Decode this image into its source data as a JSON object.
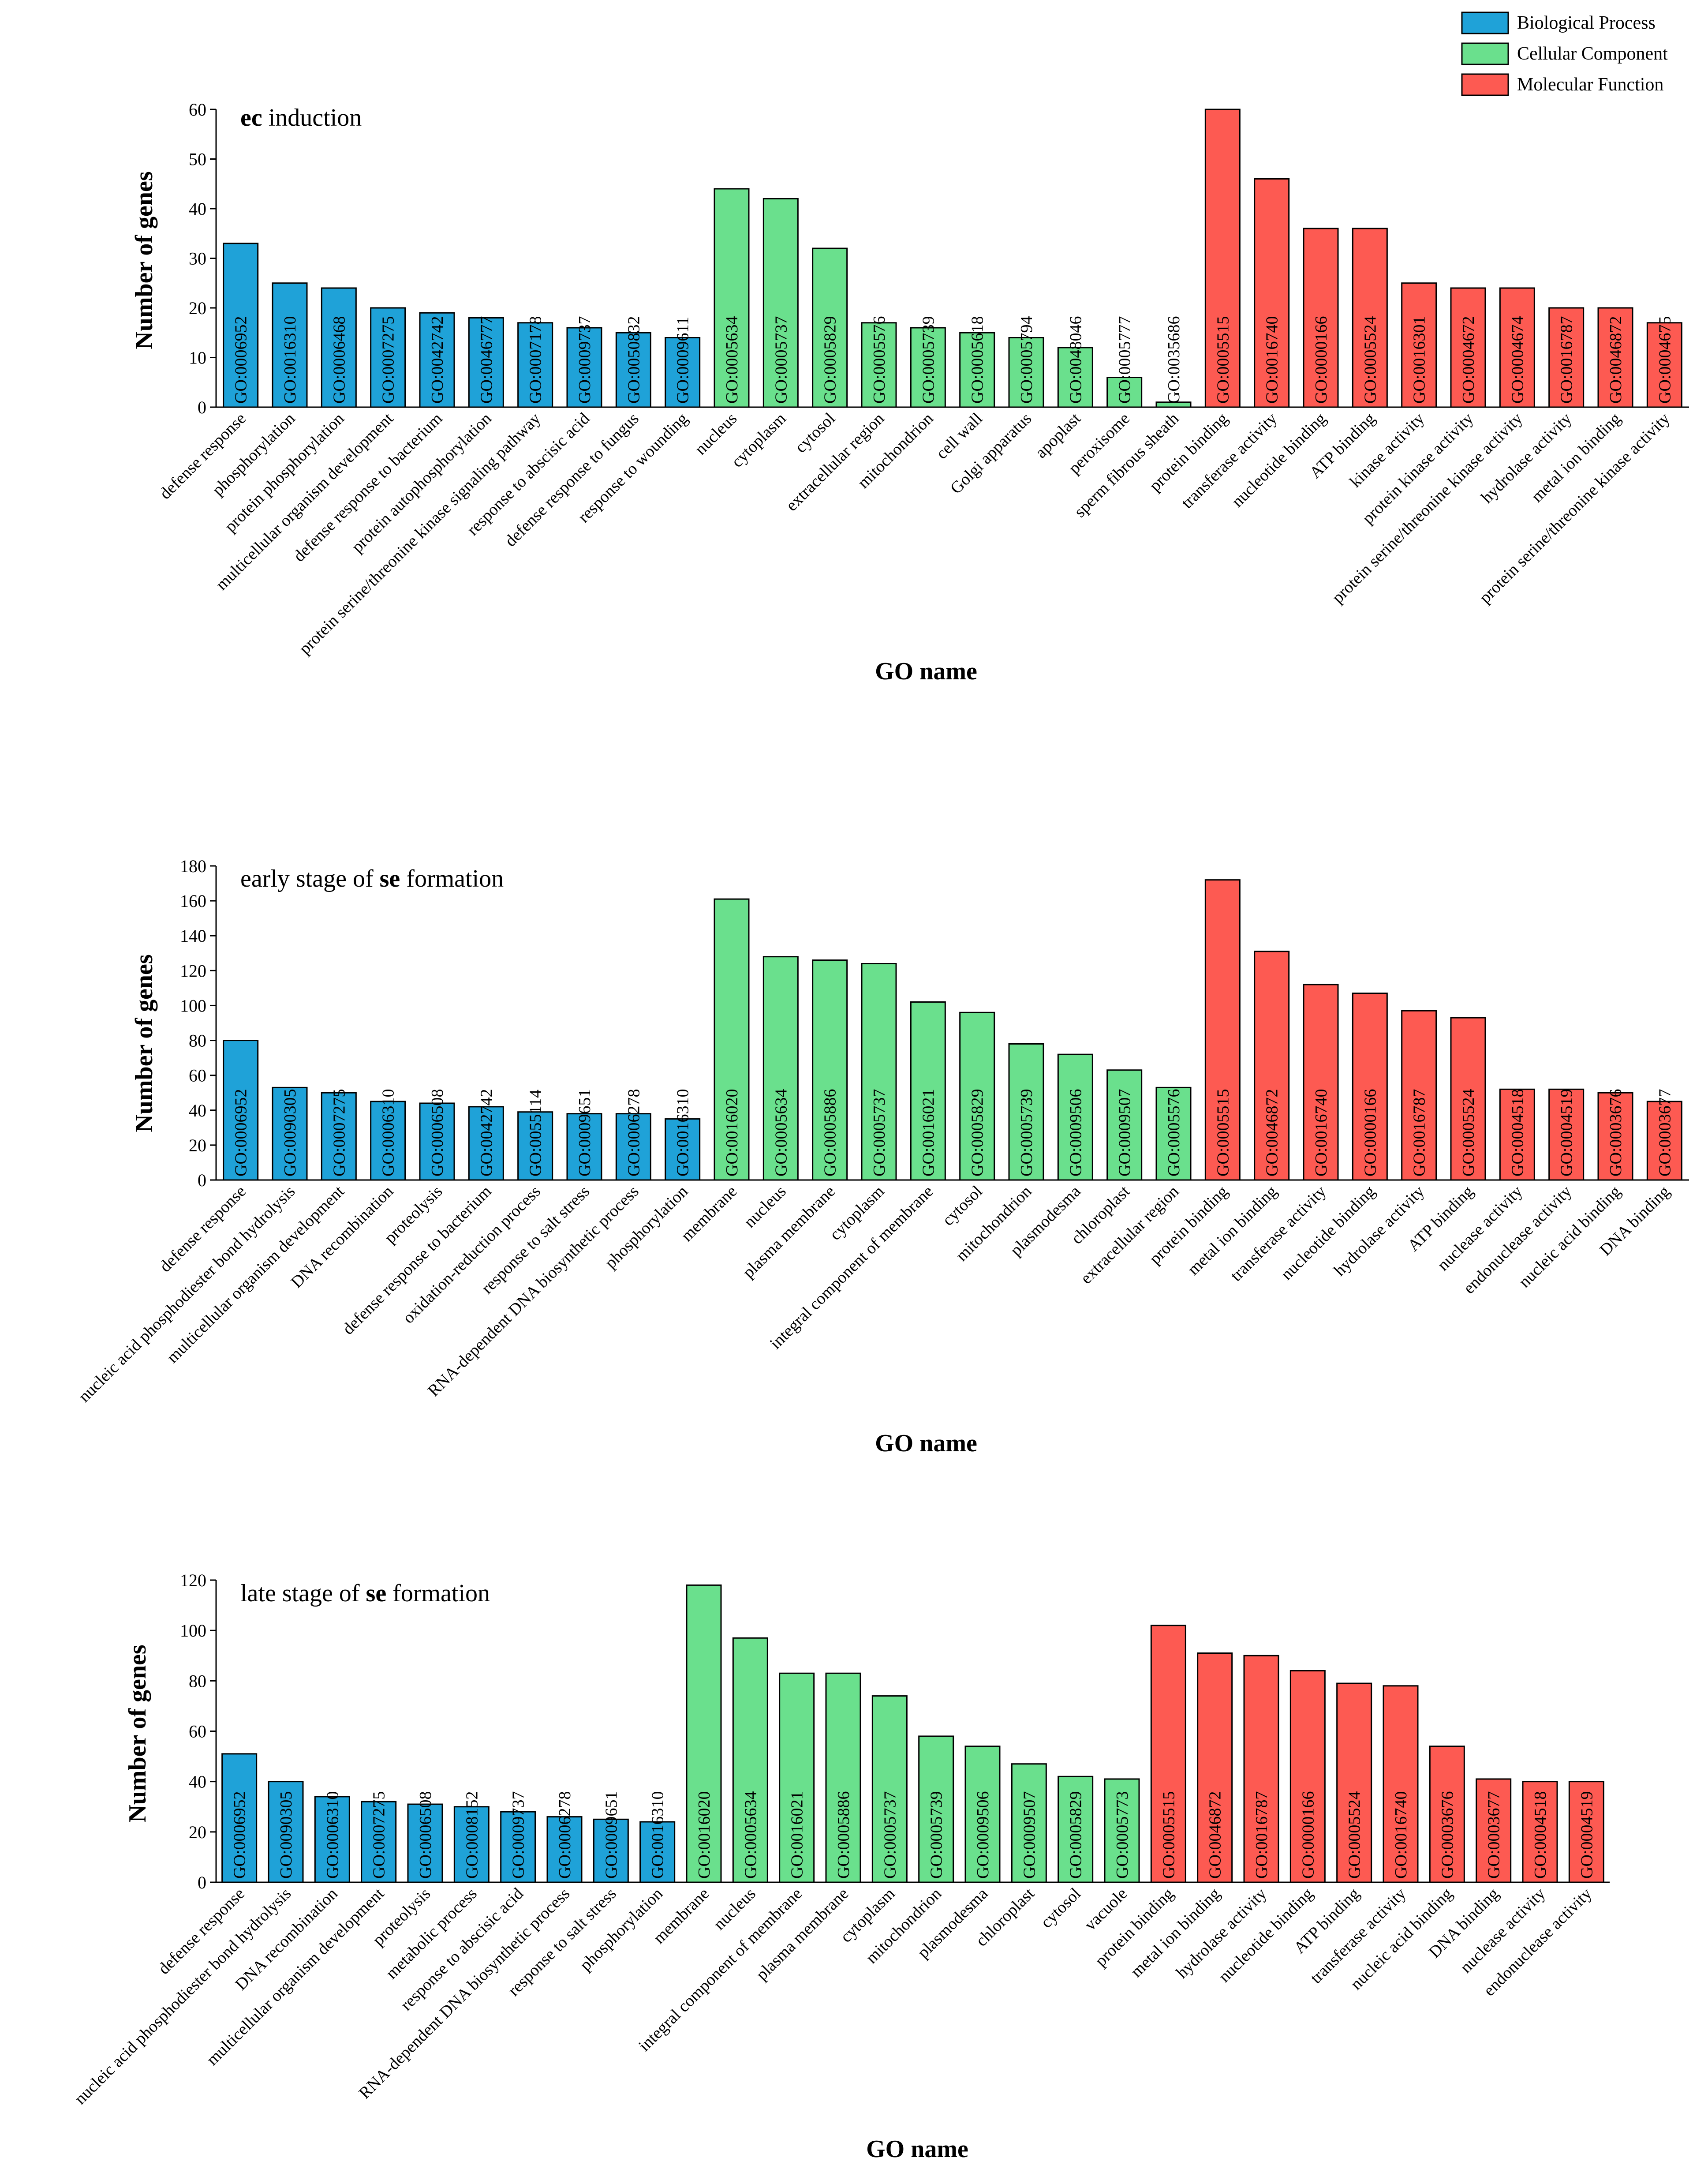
{
  "legend": {
    "items": [
      {
        "label": "Biological Process",
        "color": "#1fa2d8"
      },
      {
        "label": "Cellular Component",
        "color": "#6ae08d"
      },
      {
        "label": "Molecular Function",
        "color": "#fd5a52"
      }
    ]
  },
  "chart_data": [
    {
      "type": "bar",
      "title_parts": [
        {
          "text": "ec",
          "bold": true
        },
        {
          "text": " induction",
          "bold": false
        }
      ],
      "xlabel": "GO name",
      "ylabel": "Number of genes",
      "ylim": [
        0,
        60
      ],
      "yticks": [
        0,
        10,
        20,
        30,
        40,
        50,
        60
      ],
      "categories": [
        "defense response",
        "phosphorylation",
        "protein phosphorylation",
        "multicellular organism development",
        "defense response to bacterium",
        "protein autophosphorylation",
        "protein serine/threonine kinase signaling pathway",
        "response to abscisic acid",
        "defense response to fungus",
        "response to wounding",
        "nucleus",
        "cytoplasm",
        "cytosol",
        "extracellular region",
        "mitochondrion",
        "cell wall",
        "Golgi apparatus",
        "apoplast",
        "peroxisome",
        "sperm fibrous sheath",
        "protein binding",
        "transferase activity",
        "nucleotide binding",
        "ATP binding",
        "kinase activity",
        "protein kinase activity",
        "protein serine/threonine kinase activity",
        "hydrolase activity",
        "metal ion binding",
        "protein serine/threonine kinase activity"
      ],
      "go_ids": [
        "GO:0006952",
        "GO:0016310",
        "GO:0006468",
        "GO:0007275",
        "GO:0042742",
        "GO:0046777",
        "GO:0007178",
        "GO:0009737",
        "GO:0050832",
        "GO:0009611",
        "GO:0005634",
        "GO:0005737",
        "GO:0005829",
        "GO:0005576",
        "GO:0005739",
        "GO:0005618",
        "GO:0005794",
        "GO:0048046",
        "GO:0005777",
        "GO:0035686",
        "GO:0005515",
        "GO:0016740",
        "GO:0000166",
        "GO:0005524",
        "GO:0016301",
        "GO:0004672",
        "GO:0004674",
        "GO:0016787",
        "GO:0046872",
        "GO:0004675"
      ],
      "values": [
        33,
        25,
        24,
        20,
        19,
        18,
        17,
        16,
        15,
        14,
        44,
        42,
        32,
        17,
        16,
        15,
        14,
        12,
        6,
        1,
        60,
        46,
        36,
        36,
        25,
        24,
        24,
        20,
        20,
        17
      ],
      "groups": [
        0,
        0,
        0,
        0,
        0,
        0,
        0,
        0,
        0,
        0,
        1,
        1,
        1,
        1,
        1,
        1,
        1,
        1,
        1,
        1,
        2,
        2,
        2,
        2,
        2,
        2,
        2,
        2,
        2,
        2
      ]
    },
    {
      "type": "bar",
      "title_parts": [
        {
          "text": "early stage of ",
          "bold": false
        },
        {
          "text": "se",
          "bold": true
        },
        {
          "text": " formation",
          "bold": false
        }
      ],
      "xlabel": "GO name",
      "ylabel": "Number of genes",
      "ylim": [
        0,
        180
      ],
      "yticks": [
        0,
        20,
        40,
        60,
        80,
        100,
        120,
        140,
        160,
        180
      ],
      "categories": [
        "defense response",
        "nucleic acid phosphodiester bond hydrolysis",
        "multicellular organism development",
        "DNA recombination",
        "proteolysis",
        "defense response to bacterium",
        "oxidation-reduction process",
        "response to salt stress",
        "RNA-dependent DNA biosynthetic process",
        "phosphorylation",
        "membrane",
        "nucleus",
        "plasma membrane",
        "cytoplasm",
        "integral component of membrane",
        "cytosol",
        "mitochondrion",
        "plasmodesma",
        "chloroplast",
        "extracellular region",
        "protein binding",
        "metal ion binding",
        "transferase activity",
        "nucleotide binding",
        "hydrolase activity",
        "ATP binding",
        "nuclease activity",
        "endonuclease activity",
        "nucleic acid binding",
        "DNA binding"
      ],
      "go_ids": [
        "GO:0006952",
        "GO:0090305",
        "GO:0007275",
        "GO:0006310",
        "GO:0006508",
        "GO:0042742",
        "GO:0055114",
        "GO:0009651",
        "GO:0006278",
        "GO:0016310",
        "GO:0016020",
        "GO:0005634",
        "GO:0005886",
        "GO:0005737",
        "GO:0016021",
        "GO:0005829",
        "GO:0005739",
        "GO:0009506",
        "GO:0009507",
        "GO:0005576",
        "GO:0005515",
        "GO:0046872",
        "GO:0016740",
        "GO:0000166",
        "GO:0016787",
        "GO:0005524",
        "GO:0004518",
        "GO:0004519",
        "GO:0003676",
        "GO:0003677"
      ],
      "values": [
        80,
        53,
        50,
        45,
        44,
        42,
        39,
        38,
        38,
        35,
        161,
        128,
        126,
        124,
        102,
        96,
        78,
        72,
        63,
        53,
        172,
        131,
        112,
        107,
        97,
        93,
        52,
        52,
        50,
        45
      ],
      "groups": [
        0,
        0,
        0,
        0,
        0,
        0,
        0,
        0,
        0,
        0,
        1,
        1,
        1,
        1,
        1,
        1,
        1,
        1,
        1,
        1,
        2,
        2,
        2,
        2,
        2,
        2,
        2,
        2,
        2,
        2
      ]
    },
    {
      "type": "bar",
      "title_parts": [
        {
          "text": "late stage of ",
          "bold": false
        },
        {
          "text": "se",
          "bold": true
        },
        {
          "text": " formation",
          "bold": false
        }
      ],
      "xlabel": "GO name",
      "ylabel": "Number of genes",
      "ylim": [
        0,
        120
      ],
      "yticks": [
        0,
        20,
        40,
        60,
        80,
        100,
        120
      ],
      "categories": [
        "defense response",
        "nucleic acid phosphodiester bond hydrolysis",
        "DNA recombination",
        "multicellular organism development",
        "proteolysis",
        "metabolic process",
        "response to abscisic acid",
        "RNA-dependent DNA biosynthetic process",
        "response to salt stress",
        "phosphorylation",
        "membrane",
        "nucleus",
        "integral component of membrane",
        "plasma membrane",
        "cytoplasm",
        "mitochondrion",
        "plasmodesma",
        "chloroplast",
        "cytosol",
        "vacuole",
        "protein binding",
        "metal ion binding",
        "hydrolase activity",
        "nucleotide binding",
        "ATP binding",
        "transferase activity",
        "nucleic acid binding",
        "DNA binding",
        "nuclease activity",
        "endonuclease activity"
      ],
      "go_ids": [
        "GO:0006952",
        "GO:0090305",
        "GO:0006310",
        "GO:0007275",
        "GO:0006508",
        "GO:0008152",
        "GO:0009737",
        "GO:0006278",
        "GO:0009651",
        "GO:0016310",
        "GO:0016020",
        "GO:0005634",
        "GO:0016021",
        "GO:0005886",
        "GO:0005737",
        "GO:0005739",
        "GO:0009506",
        "GO:0009507",
        "GO:0005829",
        "GO:0005773",
        "GO:0005515",
        "GO:0046872",
        "GO:0016787",
        "GO:0000166",
        "GO:0005524",
        "GO:0016740",
        "GO:0003676",
        "GO:0003677",
        "GO:0004518",
        "GO:0004519"
      ],
      "values": [
        51,
        40,
        34,
        32,
        31,
        30,
        28,
        26,
        25,
        24,
        118,
        97,
        83,
        83,
        74,
        58,
        54,
        47,
        42,
        41,
        102,
        91,
        90,
        84,
        79,
        78,
        54,
        41,
        40,
        40
      ],
      "groups": [
        0,
        0,
        0,
        0,
        0,
        0,
        0,
        0,
        0,
        0,
        1,
        1,
        1,
        1,
        1,
        1,
        1,
        1,
        1,
        1,
        2,
        2,
        2,
        2,
        2,
        2,
        2,
        2,
        2,
        2
      ]
    }
  ]
}
